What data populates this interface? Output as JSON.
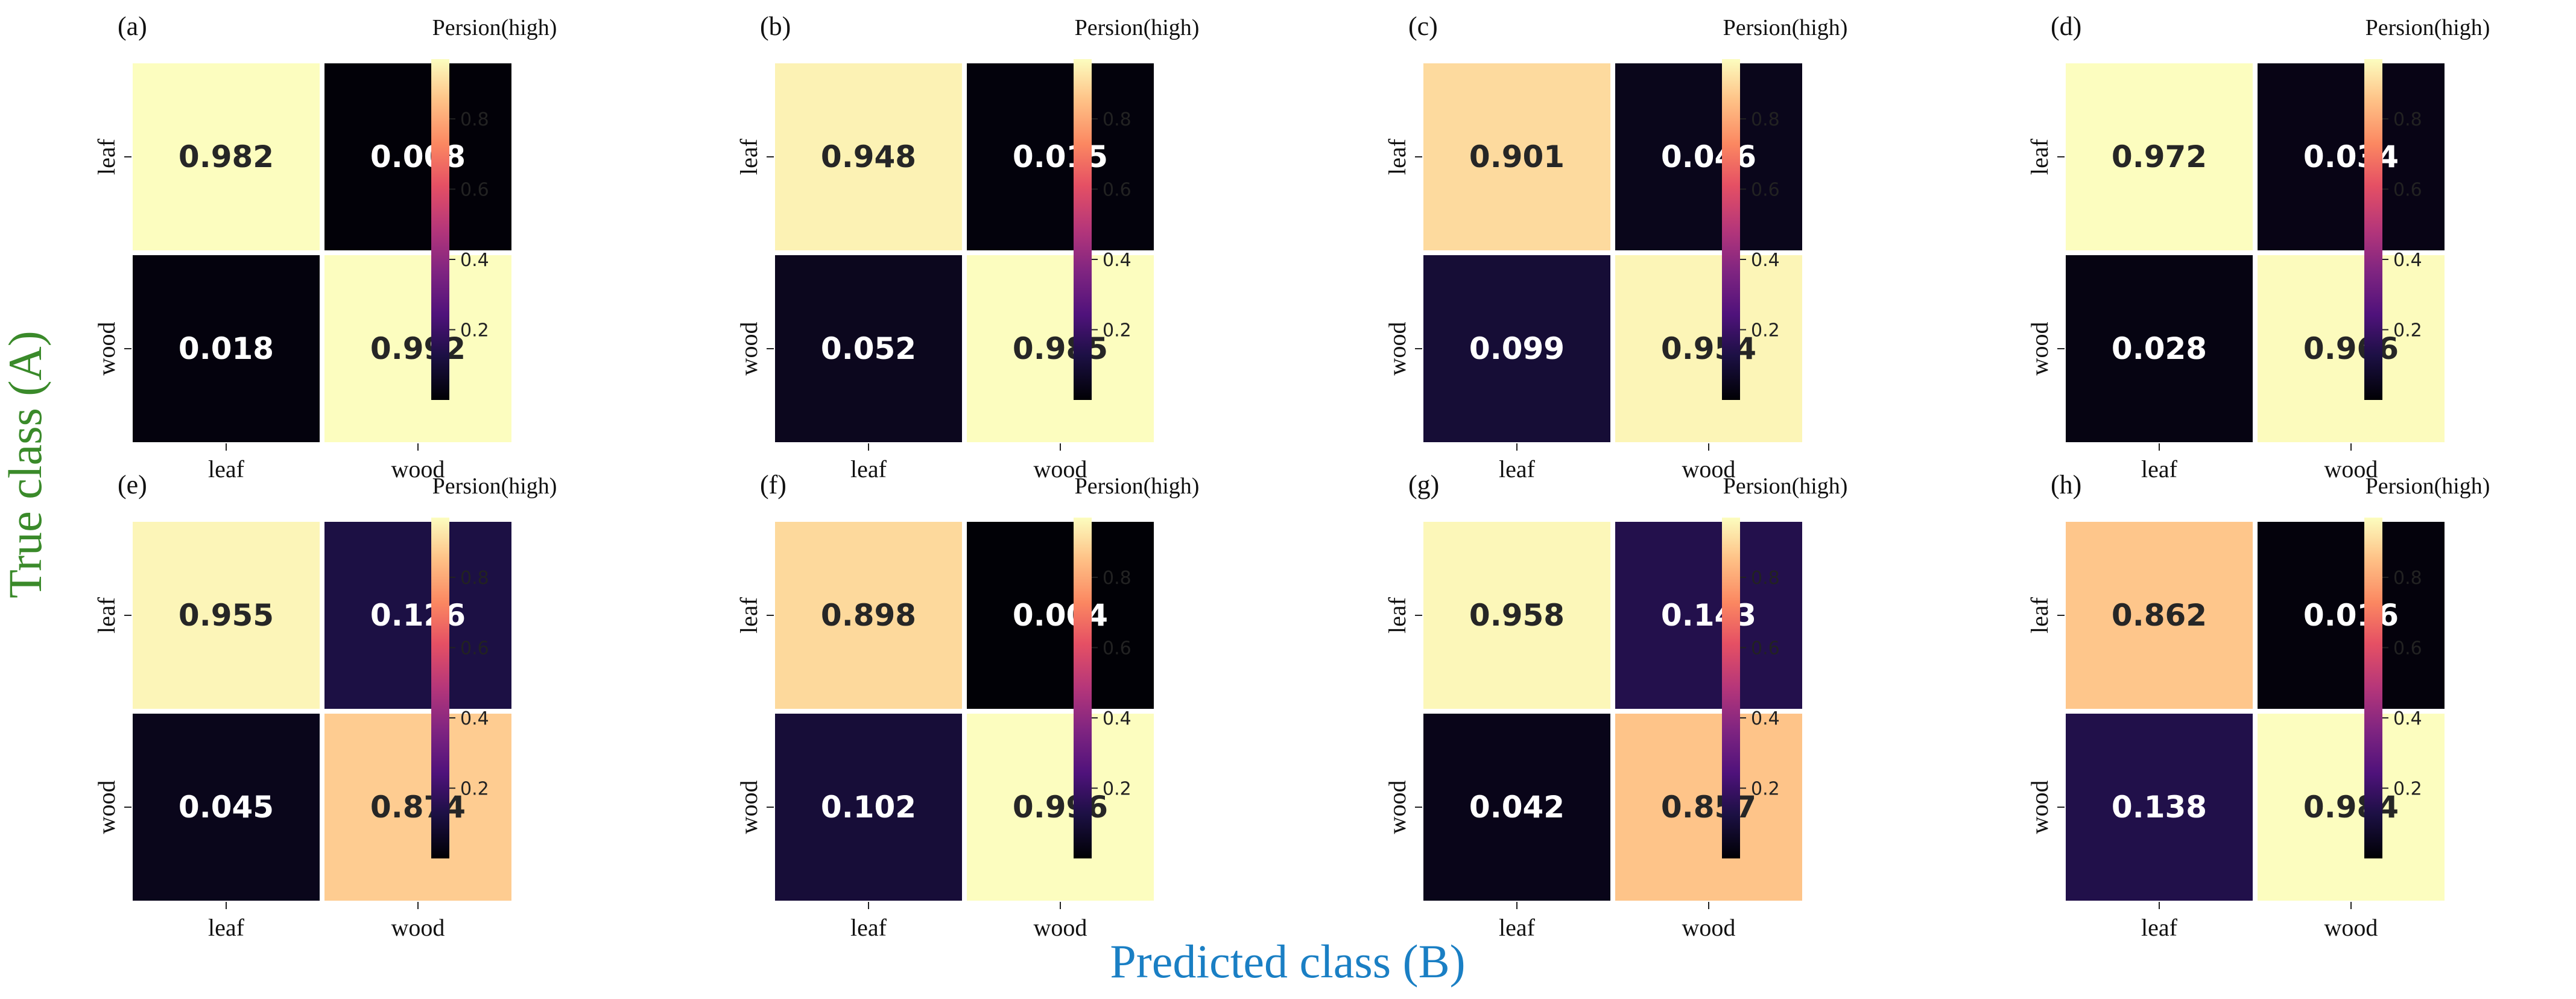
{
  "figure": {
    "y_label": "True class (A)",
    "x_label": "Predicted class (B)",
    "y_label_color": "#3a8a2a",
    "x_label_color": "#1a7fc4"
  },
  "chart_data": [
    {
      "type": "heatmap",
      "panel": "(a)",
      "colorbar_title": "Persion(high)",
      "rows": [
        "leaf",
        "wood"
      ],
      "cols": [
        "leaf",
        "wood"
      ],
      "values": [
        [
          0.982,
          0.008
        ],
        [
          0.018,
          0.992
        ]
      ],
      "colorbar_ticks": [
        "0.2",
        "0.4",
        "0.6",
        "0.8"
      ]
    },
    {
      "type": "heatmap",
      "panel": "(b)",
      "colorbar_title": "Persion(high)",
      "rows": [
        "leaf",
        "wood"
      ],
      "cols": [
        "leaf",
        "wood"
      ],
      "values": [
        [
          0.948,
          0.015
        ],
        [
          0.052,
          0.985
        ]
      ],
      "colorbar_ticks": [
        "0.2",
        "0.4",
        "0.6",
        "0.8"
      ]
    },
    {
      "type": "heatmap",
      "panel": "(c)",
      "colorbar_title": "Persion(high)",
      "rows": [
        "leaf",
        "wood"
      ],
      "cols": [
        "leaf",
        "wood"
      ],
      "values": [
        [
          0.901,
          0.046
        ],
        [
          0.099,
          0.954
        ]
      ],
      "colorbar_ticks": [
        "0.2",
        "0.4",
        "0.6",
        "0.8"
      ]
    },
    {
      "type": "heatmap",
      "panel": "(d)",
      "colorbar_title": "Persion(high)",
      "rows": [
        "leaf",
        "wood"
      ],
      "cols": [
        "leaf",
        "wood"
      ],
      "values": [
        [
          0.972,
          0.034
        ],
        [
          0.028,
          0.966
        ]
      ],
      "colorbar_ticks": [
        "0.2",
        "0.4",
        "0.6",
        "0.8"
      ]
    },
    {
      "type": "heatmap",
      "panel": "(e)",
      "colorbar_title": "Persion(high)",
      "rows": [
        "leaf",
        "wood"
      ],
      "cols": [
        "leaf",
        "wood"
      ],
      "values": [
        [
          0.955,
          0.126
        ],
        [
          0.045,
          0.874
        ]
      ],
      "colorbar_ticks": [
        "0.2",
        "0.4",
        "0.6",
        "0.8"
      ]
    },
    {
      "type": "heatmap",
      "panel": "(f)",
      "colorbar_title": "Persion(high)",
      "rows": [
        "leaf",
        "wood"
      ],
      "cols": [
        "leaf",
        "wood"
      ],
      "values": [
        [
          0.898,
          0.004
        ],
        [
          0.102,
          0.996
        ]
      ],
      "colorbar_ticks": [
        "0.2",
        "0.4",
        "0.6",
        "0.8"
      ]
    },
    {
      "type": "heatmap",
      "panel": "(g)",
      "colorbar_title": "Persion(high)",
      "rows": [
        "leaf",
        "wood"
      ],
      "cols": [
        "leaf",
        "wood"
      ],
      "values": [
        [
          0.958,
          0.143
        ],
        [
          0.042,
          0.857
        ]
      ],
      "colorbar_ticks": [
        "0.2",
        "0.4",
        "0.6",
        "0.8"
      ]
    },
    {
      "type": "heatmap",
      "panel": "(h)",
      "colorbar_title": "Persion(high)",
      "rows": [
        "leaf",
        "wood"
      ],
      "cols": [
        "leaf",
        "wood"
      ],
      "values": [
        [
          0.862,
          0.016
        ],
        [
          0.138,
          0.984
        ]
      ],
      "colorbar_ticks": [
        "0.2",
        "0.4",
        "0.6",
        "0.8"
      ]
    }
  ]
}
